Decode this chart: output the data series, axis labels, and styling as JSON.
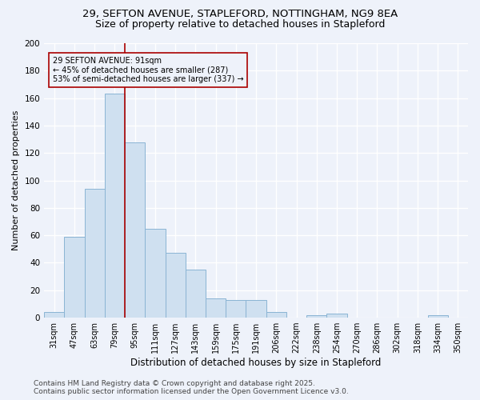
{
  "title_line1": "29, SEFTON AVENUE, STAPLEFORD, NOTTINGHAM, NG9 8EA",
  "title_line2": "Size of property relative to detached houses in Stapleford",
  "xlabel": "Distribution of detached houses by size in Stapleford",
  "ylabel": "Number of detached properties",
  "categories": [
    "31sqm",
    "47sqm",
    "63sqm",
    "79sqm",
    "95sqm",
    "111sqm",
    "127sqm",
    "143sqm",
    "159sqm",
    "175sqm",
    "191sqm",
    "206sqm",
    "222sqm",
    "238sqm",
    "254sqm",
    "270sqm",
    "286sqm",
    "302sqm",
    "318sqm",
    "334sqm",
    "350sqm"
  ],
  "values": [
    4,
    59,
    94,
    163,
    128,
    65,
    47,
    35,
    14,
    13,
    13,
    4,
    0,
    2,
    3,
    0,
    0,
    0,
    0,
    2,
    0
  ],
  "bar_color": "#cfe0f0",
  "bar_edge_color": "#8ab4d4",
  "vline_color": "#aa0000",
  "vline_x_index": 3.5,
  "annotation_text": "29 SEFTON AVENUE: 91sqm\n← 45% of detached houses are smaller (287)\n53% of semi-detached houses are larger (337) →",
  "ylim": [
    0,
    200
  ],
  "yticks": [
    0,
    20,
    40,
    60,
    80,
    100,
    120,
    140,
    160,
    180,
    200
  ],
  "footer_line1": "Contains HM Land Registry data © Crown copyright and database right 2025.",
  "footer_line2": "Contains public sector information licensed under the Open Government Licence v3.0.",
  "background_color": "#eef2fa",
  "grid_color": "#ffffff",
  "title_fontsize": 9.5,
  "subtitle_fontsize": 9,
  "tick_fontsize": 7,
  "ylabel_fontsize": 8,
  "xlabel_fontsize": 8.5,
  "annotation_fontsize": 7,
  "footer_fontsize": 6.5
}
